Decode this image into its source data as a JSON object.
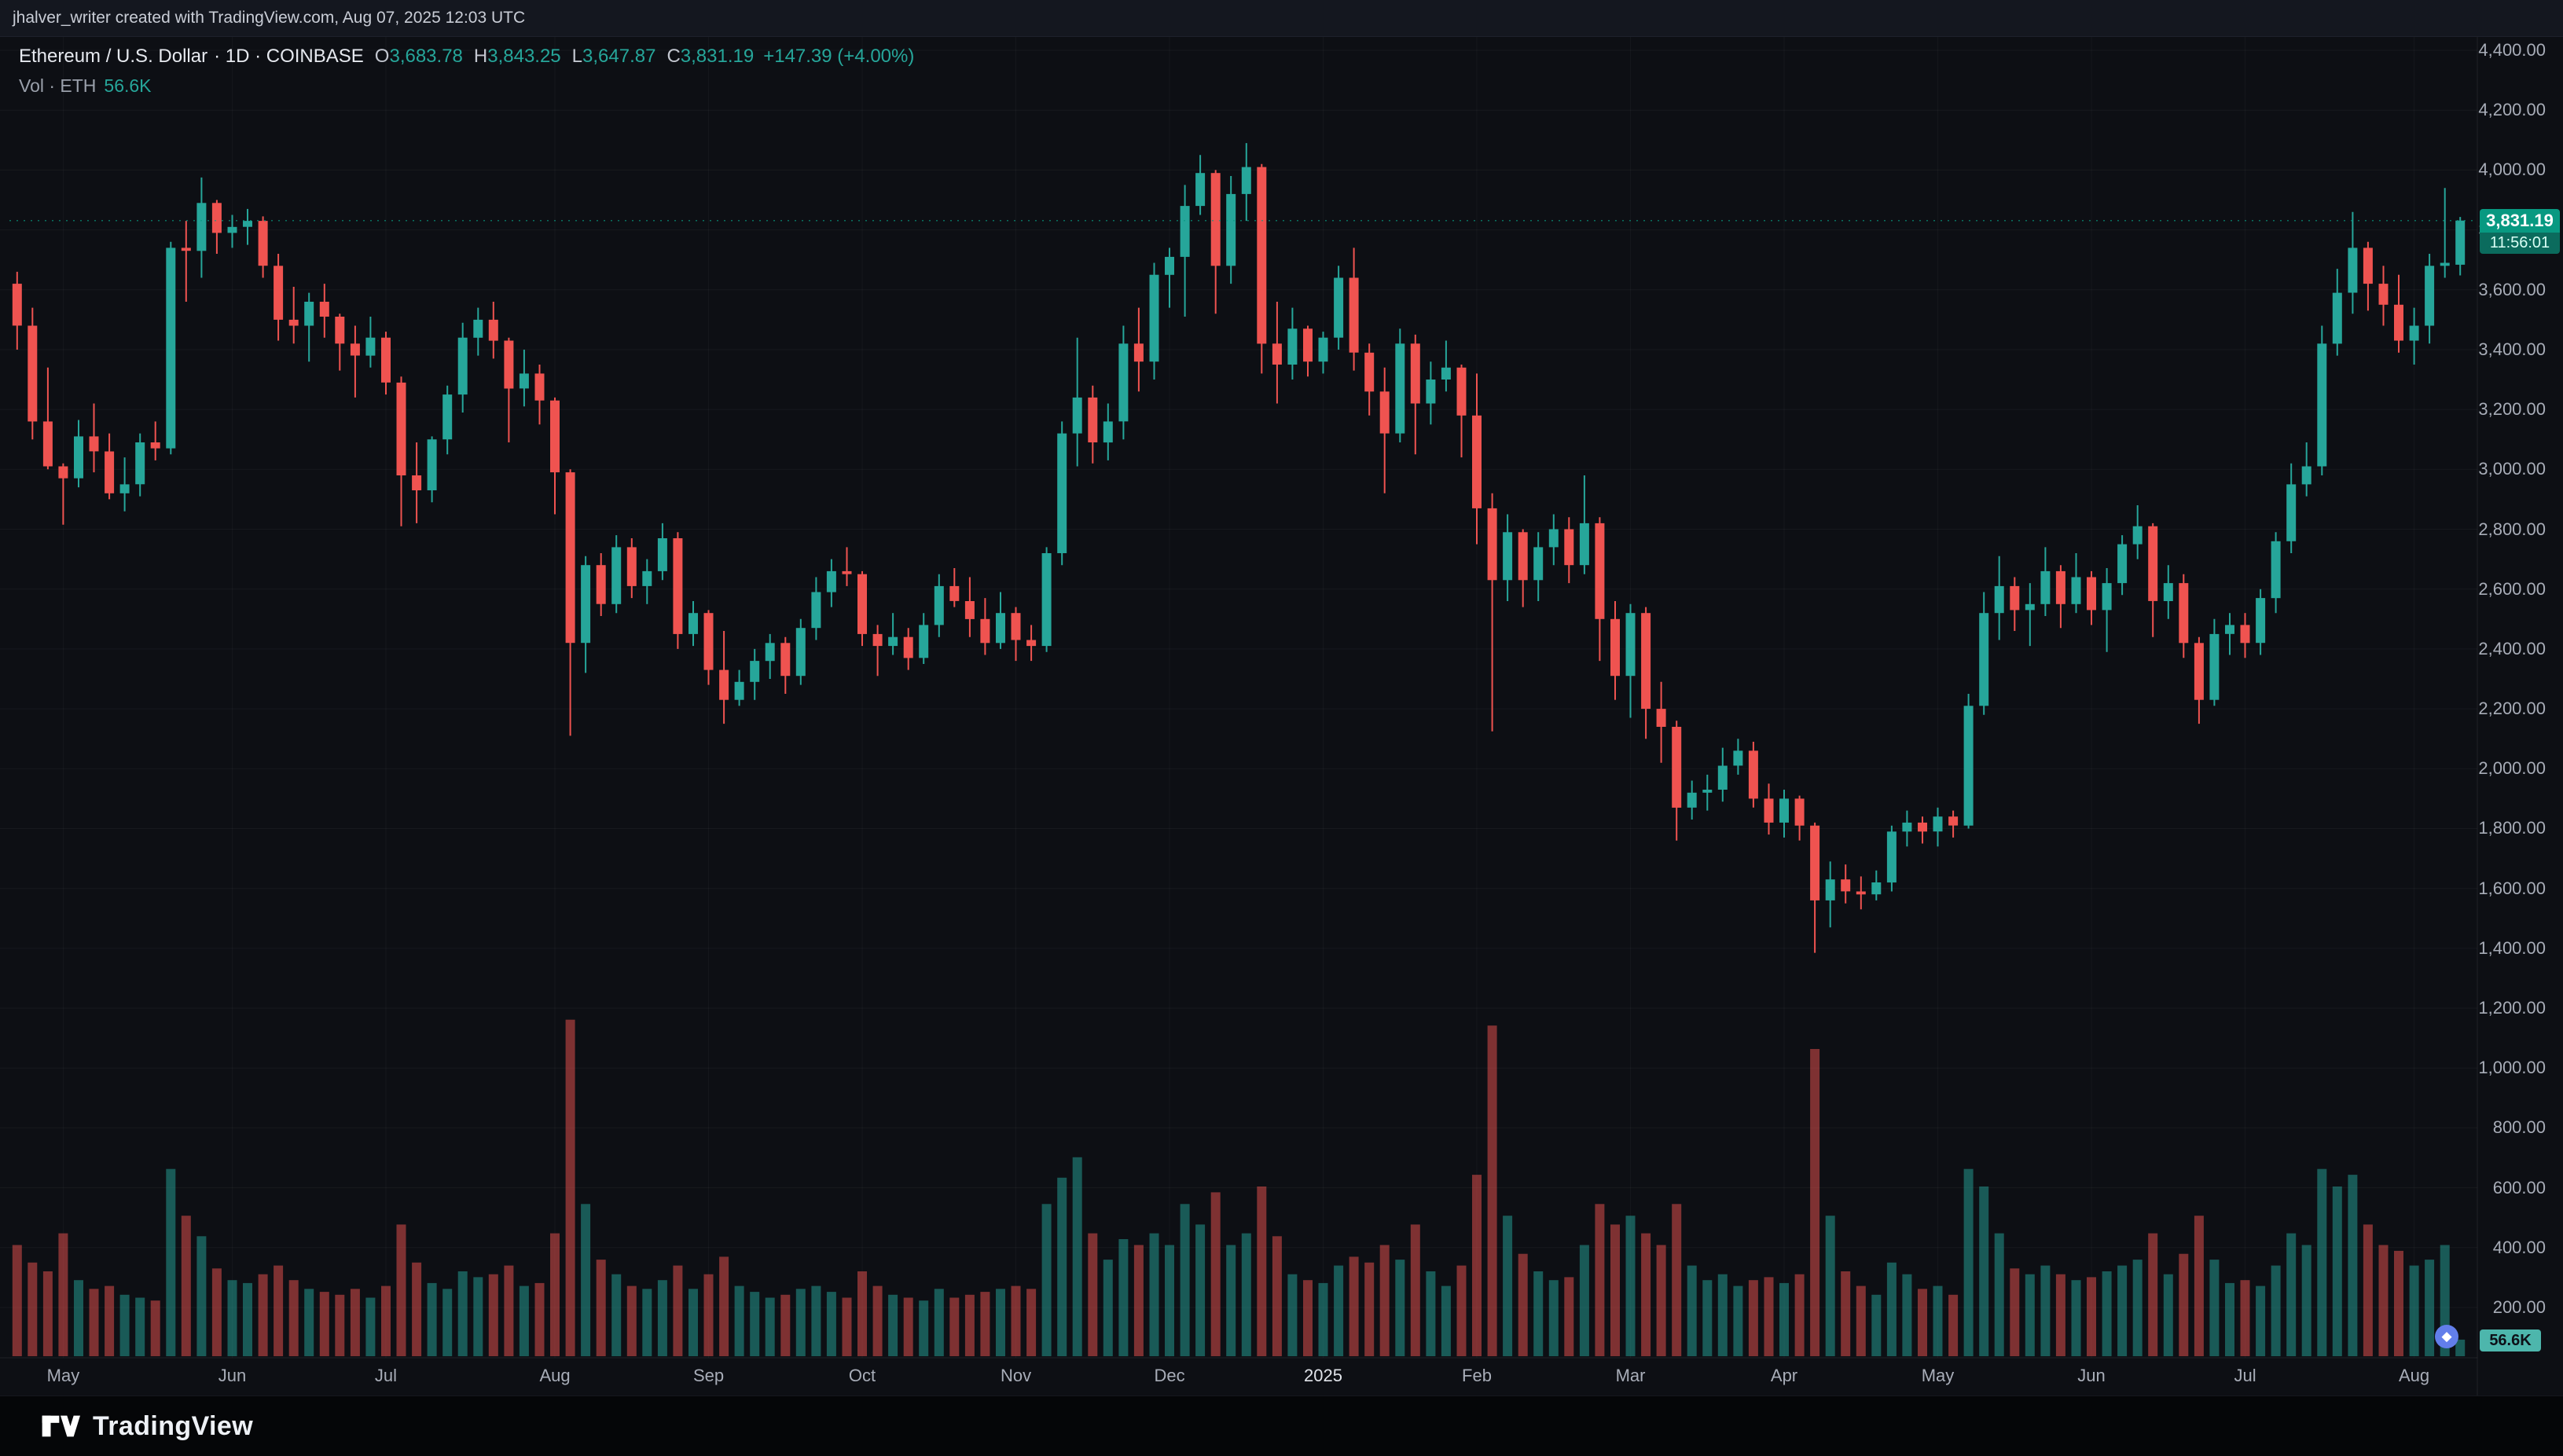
{
  "attribution": "jhalver_writer created with TradingView.com, Aug 07, 2025 12:03 UTC",
  "legend": {
    "symbol": "Ethereum / U.S. Dollar",
    "meta": "· 1D · COINBASE",
    "o_label": "O",
    "o": "3,683.78",
    "h_label": "H",
    "h": "3,843.25",
    "l_label": "L",
    "l": "3,647.87",
    "c_label": "C",
    "c": "3,831.19",
    "change": "+147.39 (+4.00%)"
  },
  "volume_legend": {
    "label": "Vol · ETH",
    "value": "56.6K"
  },
  "price_badge": {
    "price": "3,831.19",
    "countdown": "11:56:01"
  },
  "volume_badge": "56.6K",
  "footer": {
    "brand": "TradingView"
  },
  "colors": {
    "up": "#26a69a",
    "down": "#ef5350",
    "badge_up": "#089981",
    "badge_timer": "#0b6b5d",
    "vol_badge_bg": "#4db6ac",
    "vol_badge_text": "#0d1017",
    "eth_icon": "#627eea",
    "bg": "#0d0f14",
    "axis_text": "#a8adb8"
  },
  "chart_data": {
    "type": "candlestick",
    "title": "Ethereum / U.S. Dollar",
    "exchange": "COINBASE",
    "interval": "1D",
    "legend_note": "volume pane overlaid at bottom, grid on, price axis right",
    "ylim": [
      200,
      4400
    ],
    "y_ticks": [
      "4,400.00",
      "4,200.00",
      "4,000.00",
      "3,800.00",
      "3,600.00",
      "3,400.00",
      "3,200.00",
      "3,000.00",
      "2,800.00",
      "2,600.00",
      "2,400.00",
      "2,200.00",
      "2,000.00",
      "1,800.00",
      "1,600.00",
      "1,400.00",
      "1,200.00",
      "1,000.00",
      "800.00",
      "600.00",
      "400.00",
      "200.00"
    ],
    "x_ticks": [
      {
        "label": "May",
        "i": 3
      },
      {
        "label": "Jun",
        "i": 14
      },
      {
        "label": "Jul",
        "i": 24
      },
      {
        "label": "Aug",
        "i": 35
      },
      {
        "label": "Sep",
        "i": 45
      },
      {
        "label": "Oct",
        "i": 55
      },
      {
        "label": "Nov",
        "i": 65
      },
      {
        "label": "Dec",
        "i": 75
      },
      {
        "label": "2025",
        "i": 85
      },
      {
        "label": "Feb",
        "i": 95
      },
      {
        "label": "Mar",
        "i": 105
      },
      {
        "label": "Apr",
        "i": 115
      },
      {
        "label": "May",
        "i": 125
      },
      {
        "label": "Jun",
        "i": 135
      },
      {
        "label": "Jul",
        "i": 145
      },
      {
        "label": "Aug",
        "i": 156
      }
    ],
    "volume_unit": "thousand ETH",
    "vol_max_thousands": 1160,
    "last_close": 3831.19,
    "candles": [
      [
        "2024-04-22",
        3620,
        3660,
        3400,
        3480,
        380
      ],
      [
        "2024-04-25",
        3480,
        3540,
        3100,
        3160,
        320
      ],
      [
        "2024-04-28",
        3160,
        3340,
        3000,
        3010,
        290
      ],
      [
        "2024-05-01",
        3010,
        3020,
        2815,
        2970,
        420
      ],
      [
        "2024-05-04",
        2970,
        3165,
        2940,
        3110,
        260
      ],
      [
        "2024-05-07",
        3110,
        3220,
        2990,
        3060,
        230
      ],
      [
        "2024-05-10",
        3060,
        3120,
        2900,
        2920,
        240
      ],
      [
        "2024-05-13",
        2920,
        3040,
        2860,
        2950,
        210
      ],
      [
        "2024-05-16",
        2950,
        3120,
        2910,
        3090,
        200
      ],
      [
        "2024-05-19",
        3090,
        3160,
        3030,
        3070,
        190
      ],
      [
        "2024-05-21",
        3070,
        3760,
        3050,
        3740,
        640
      ],
      [
        "2024-05-24",
        3740,
        3830,
        3560,
        3730,
        480
      ],
      [
        "2024-05-27",
        3730,
        3975,
        3640,
        3890,
        410
      ],
      [
        "2024-05-30",
        3890,
        3900,
        3720,
        3790,
        300
      ],
      [
        "2024-06-02",
        3790,
        3850,
        3740,
        3810,
        260
      ],
      [
        "2024-06-05",
        3810,
        3870,
        3750,
        3830,
        250
      ],
      [
        "2024-06-08",
        3830,
        3845,
        3640,
        3680,
        280
      ],
      [
        "2024-06-11",
        3680,
        3720,
        3430,
        3500,
        310
      ],
      [
        "2024-06-14",
        3500,
        3610,
        3420,
        3480,
        260
      ],
      [
        "2024-06-17",
        3480,
        3590,
        3360,
        3560,
        230
      ],
      [
        "2024-06-20",
        3560,
        3620,
        3440,
        3510,
        220
      ],
      [
        "2024-06-23",
        3510,
        3520,
        3330,
        3420,
        210
      ],
      [
        "2024-06-26",
        3420,
        3480,
        3240,
        3380,
        230
      ],
      [
        "2024-06-29",
        3380,
        3510,
        3340,
        3440,
        200
      ],
      [
        "2024-07-01",
        3440,
        3460,
        3250,
        3290,
        240
      ],
      [
        "2024-07-04",
        3290,
        3310,
        2810,
        2980,
        450
      ],
      [
        "2024-07-07",
        2980,
        3090,
        2820,
        2930,
        320
      ],
      [
        "2024-07-10",
        2930,
        3110,
        2890,
        3100,
        250
      ],
      [
        "2024-07-13",
        3100,
        3280,
        3050,
        3250,
        230
      ],
      [
        "2024-07-16",
        3250,
        3490,
        3190,
        3440,
        290
      ],
      [
        "2024-07-19",
        3440,
        3540,
        3380,
        3500,
        270
      ],
      [
        "2024-07-22",
        3500,
        3560,
        3370,
        3430,
        280
      ],
      [
        "2024-07-25",
        3430,
        3440,
        3090,
        3270,
        310
      ],
      [
        "2024-07-28",
        3270,
        3400,
        3210,
        3320,
        240
      ],
      [
        "2024-07-31",
        3320,
        3350,
        3150,
        3230,
        250
      ],
      [
        "2024-08-02",
        3230,
        3240,
        2850,
        2990,
        420
      ],
      [
        "2024-08-05",
        2990,
        3000,
        2110,
        2420,
        1150
      ],
      [
        "2024-08-08",
        2420,
        2710,
        2320,
        2680,
        520
      ],
      [
        "2024-08-11",
        2680,
        2720,
        2510,
        2550,
        330
      ],
      [
        "2024-08-14",
        2550,
        2780,
        2520,
        2740,
        280
      ],
      [
        "2024-08-17",
        2740,
        2770,
        2570,
        2610,
        240
      ],
      [
        "2024-08-20",
        2610,
        2700,
        2550,
        2660,
        230
      ],
      [
        "2024-08-23",
        2660,
        2820,
        2630,
        2770,
        260
      ],
      [
        "2024-08-26",
        2770,
        2790,
        2400,
        2450,
        310
      ],
      [
        "2024-08-29",
        2450,
        2560,
        2410,
        2520,
        230
      ],
      [
        "2024-09-01",
        2520,
        2530,
        2280,
        2330,
        280
      ],
      [
        "2024-09-04",
        2330,
        2460,
        2150,
        2230,
        340
      ],
      [
        "2024-09-07",
        2230,
        2330,
        2210,
        2290,
        240
      ],
      [
        "2024-09-10",
        2290,
        2400,
        2230,
        2360,
        220
      ],
      [
        "2024-09-13",
        2360,
        2450,
        2300,
        2420,
        200
      ],
      [
        "2024-09-16",
        2420,
        2440,
        2250,
        2310,
        210
      ],
      [
        "2024-09-19",
        2310,
        2500,
        2280,
        2470,
        230
      ],
      [
        "2024-09-22",
        2470,
        2640,
        2430,
        2590,
        240
      ],
      [
        "2024-09-25",
        2590,
        2700,
        2540,
        2660,
        220
      ],
      [
        "2024-09-28",
        2660,
        2740,
        2610,
        2650,
        200
      ],
      [
        "2024-10-01",
        2650,
        2660,
        2410,
        2450,
        290
      ],
      [
        "2024-10-04",
        2450,
        2480,
        2310,
        2410,
        240
      ],
      [
        "2024-10-07",
        2410,
        2520,
        2380,
        2440,
        210
      ],
      [
        "2024-10-10",
        2440,
        2470,
        2330,
        2370,
        200
      ],
      [
        "2024-10-13",
        2370,
        2520,
        2350,
        2480,
        190
      ],
      [
        "2024-10-16",
        2480,
        2650,
        2440,
        2610,
        230
      ],
      [
        "2024-10-19",
        2610,
        2670,
        2540,
        2560,
        200
      ],
      [
        "2024-10-22",
        2560,
        2640,
        2440,
        2500,
        210
      ],
      [
        "2024-10-25",
        2500,
        2570,
        2380,
        2420,
        220
      ],
      [
        "2024-10-28",
        2420,
        2590,
        2400,
        2520,
        230
      ],
      [
        "2024-11-01",
        2520,
        2540,
        2360,
        2430,
        240
      ],
      [
        "2024-11-04",
        2430,
        2480,
        2360,
        2410,
        230
      ],
      [
        "2024-11-06",
        2410,
        2740,
        2390,
        2720,
        520
      ],
      [
        "2024-11-09",
        2720,
        3160,
        2680,
        3120,
        610
      ],
      [
        "2024-11-12",
        3120,
        3440,
        3010,
        3240,
        680
      ],
      [
        "2024-11-15",
        3240,
        3280,
        3020,
        3090,
        420
      ],
      [
        "2024-11-18",
        3090,
        3220,
        3030,
        3160,
        330
      ],
      [
        "2024-11-21",
        3160,
        3480,
        3100,
        3420,
        400
      ],
      [
        "2024-11-24",
        3420,
        3540,
        3260,
        3360,
        380
      ],
      [
        "2024-11-27",
        3360,
        3690,
        3300,
        3650,
        420
      ],
      [
        "2024-12-01",
        3650,
        3740,
        3540,
        3710,
        380
      ],
      [
        "2024-12-04",
        3710,
        3950,
        3510,
        3880,
        520
      ],
      [
        "2024-12-07",
        3880,
        4050,
        3850,
        3990,
        450
      ],
      [
        "2024-12-10",
        3990,
        4000,
        3520,
        3680,
        560
      ],
      [
        "2024-12-13",
        3680,
        3980,
        3620,
        3920,
        380
      ],
      [
        "2024-12-16",
        3920,
        4090,
        3830,
        4010,
        420
      ],
      [
        "2024-12-19",
        4010,
        4020,
        3320,
        3420,
        580
      ],
      [
        "2024-12-22",
        3420,
        3560,
        3220,
        3350,
        410
      ],
      [
        "2024-12-25",
        3350,
        3540,
        3300,
        3470,
        280
      ],
      [
        "2024-12-28",
        3470,
        3480,
        3310,
        3360,
        260
      ],
      [
        "2025-01-01",
        3360,
        3460,
        3320,
        3440,
        250
      ],
      [
        "2025-01-04",
        3440,
        3680,
        3400,
        3640,
        310
      ],
      [
        "2025-01-07",
        3640,
        3740,
        3330,
        3390,
        340
      ],
      [
        "2025-01-10",
        3390,
        3420,
        3180,
        3260,
        320
      ],
      [
        "2025-01-13",
        3260,
        3340,
        2920,
        3120,
        380
      ],
      [
        "2025-01-16",
        3120,
        3470,
        3090,
        3420,
        330
      ],
      [
        "2025-01-19",
        3420,
        3450,
        3050,
        3220,
        450
      ],
      [
        "2025-01-22",
        3220,
        3360,
        3150,
        3300,
        290
      ],
      [
        "2025-01-25",
        3300,
        3430,
        3260,
        3340,
        240
      ],
      [
        "2025-01-28",
        3340,
        3350,
        3040,
        3180,
        310
      ],
      [
        "2025-02-01",
        3180,
        3320,
        2750,
        2870,
        620
      ],
      [
        "2025-02-03",
        2870,
        2920,
        2125,
        2630,
        1130
      ],
      [
        "2025-02-06",
        2630,
        2850,
        2560,
        2790,
        480
      ],
      [
        "2025-02-09",
        2790,
        2800,
        2540,
        2630,
        350
      ],
      [
        "2025-02-12",
        2630,
        2790,
        2560,
        2740,
        290
      ],
      [
        "2025-02-15",
        2740,
        2850,
        2680,
        2800,
        260
      ],
      [
        "2025-02-18",
        2800,
        2840,
        2620,
        2680,
        270
      ],
      [
        "2025-02-21",
        2680,
        2980,
        2650,
        2820,
        380
      ],
      [
        "2025-02-24",
        2820,
        2840,
        2360,
        2500,
        520
      ],
      [
        "2025-02-27",
        2500,
        2560,
        2230,
        2310,
        450
      ],
      [
        "2025-03-02",
        2310,
        2550,
        2170,
        2520,
        480
      ],
      [
        "2025-03-05",
        2520,
        2540,
        2100,
        2200,
        420
      ],
      [
        "2025-03-08",
        2200,
        2290,
        2020,
        2140,
        380
      ],
      [
        "2025-03-11",
        2140,
        2160,
        1760,
        1870,
        520
      ],
      [
        "2025-03-14",
        1870,
        1960,
        1830,
        1920,
        310
      ],
      [
        "2025-03-17",
        1920,
        1980,
        1860,
        1930,
        260
      ],
      [
        "2025-03-20",
        1930,
        2070,
        1890,
        2010,
        280
      ],
      [
        "2025-03-23",
        2010,
        2100,
        1980,
        2060,
        240
      ],
      [
        "2025-03-26",
        2060,
        2090,
        1870,
        1900,
        260
      ],
      [
        "2025-03-29",
        1900,
        1950,
        1780,
        1820,
        270
      ],
      [
        "2025-04-01",
        1820,
        1930,
        1770,
        1900,
        250
      ],
      [
        "2025-04-04",
        1900,
        1910,
        1760,
        1810,
        280
      ],
      [
        "2025-04-07",
        1810,
        1820,
        1385,
        1560,
        1050
      ],
      [
        "2025-04-10",
        1560,
        1690,
        1470,
        1630,
        480
      ],
      [
        "2025-04-13",
        1630,
        1680,
        1550,
        1590,
        290
      ],
      [
        "2025-04-16",
        1590,
        1640,
        1530,
        1580,
        240
      ],
      [
        "2025-04-19",
        1580,
        1660,
        1560,
        1620,
        210
      ],
      [
        "2025-04-22",
        1620,
        1810,
        1590,
        1790,
        320
      ],
      [
        "2025-04-25",
        1790,
        1860,
        1740,
        1820,
        280
      ],
      [
        "2025-04-28",
        1820,
        1840,
        1750,
        1790,
        230
      ],
      [
        "2025-05-01",
        1790,
        1870,
        1740,
        1840,
        240
      ],
      [
        "2025-05-04",
        1840,
        1860,
        1770,
        1810,
        210
      ],
      [
        "2025-05-08",
        1810,
        2250,
        1800,
        2210,
        640
      ],
      [
        "2025-05-10",
        2210,
        2590,
        2180,
        2520,
        580
      ],
      [
        "2025-05-13",
        2520,
        2710,
        2430,
        2610,
        420
      ],
      [
        "2025-05-16",
        2610,
        2640,
        2460,
        2530,
        300
      ],
      [
        "2025-05-19",
        2530,
        2620,
        2410,
        2550,
        280
      ],
      [
        "2025-05-22",
        2550,
        2740,
        2510,
        2660,
        310
      ],
      [
        "2025-05-25",
        2660,
        2680,
        2470,
        2550,
        280
      ],
      [
        "2025-05-28",
        2550,
        2720,
        2520,
        2640,
        260
      ],
      [
        "2025-06-01",
        2640,
        2660,
        2480,
        2530,
        270
      ],
      [
        "2025-06-04",
        2530,
        2670,
        2390,
        2620,
        290
      ],
      [
        "2025-06-07",
        2620,
        2780,
        2580,
        2750,
        310
      ],
      [
        "2025-06-10",
        2750,
        2880,
        2700,
        2810,
        330
      ],
      [
        "2025-06-13",
        2810,
        2820,
        2440,
        2560,
        420
      ],
      [
        "2025-06-16",
        2560,
        2680,
        2500,
        2620,
        280
      ],
      [
        "2025-06-19",
        2620,
        2650,
        2370,
        2420,
        350
      ],
      [
        "2025-06-22",
        2420,
        2440,
        2150,
        2230,
        480
      ],
      [
        "2025-06-25",
        2230,
        2500,
        2210,
        2450,
        330
      ],
      [
        "2025-06-28",
        2450,
        2520,
        2380,
        2480,
        250
      ],
      [
        "2025-07-01",
        2480,
        2520,
        2370,
        2420,
        260
      ],
      [
        "2025-07-04",
        2420,
        2600,
        2380,
        2570,
        240
      ],
      [
        "2025-07-07",
        2570,
        2790,
        2520,
        2760,
        310
      ],
      [
        "2025-07-10",
        2760,
        3020,
        2720,
        2950,
        420
      ],
      [
        "2025-07-13",
        2950,
        3090,
        2910,
        3010,
        380
      ],
      [
        "2025-07-16",
        3010,
        3480,
        2980,
        3420,
        640
      ],
      [
        "2025-07-19",
        3420,
        3670,
        3380,
        3590,
        580
      ],
      [
        "2025-07-22",
        3590,
        3860,
        3520,
        3740,
        620
      ],
      [
        "2025-07-25",
        3740,
        3760,
        3530,
        3620,
        450
      ],
      [
        "2025-07-28",
        3620,
        3680,
        3480,
        3550,
        380
      ],
      [
        "2025-07-31",
        3550,
        3650,
        3390,
        3430,
        360
      ],
      [
        "2025-08-02",
        3430,
        3540,
        3350,
        3480,
        310
      ],
      [
        "2025-08-04",
        3480,
        3720,
        3420,
        3680,
        330
      ],
      [
        "2025-08-06",
        3680,
        3940,
        3640,
        3690,
        380
      ],
      [
        "2025-08-07",
        3683.78,
        3843.25,
        3647.87,
        3831.19,
        56.6
      ]
    ]
  }
}
